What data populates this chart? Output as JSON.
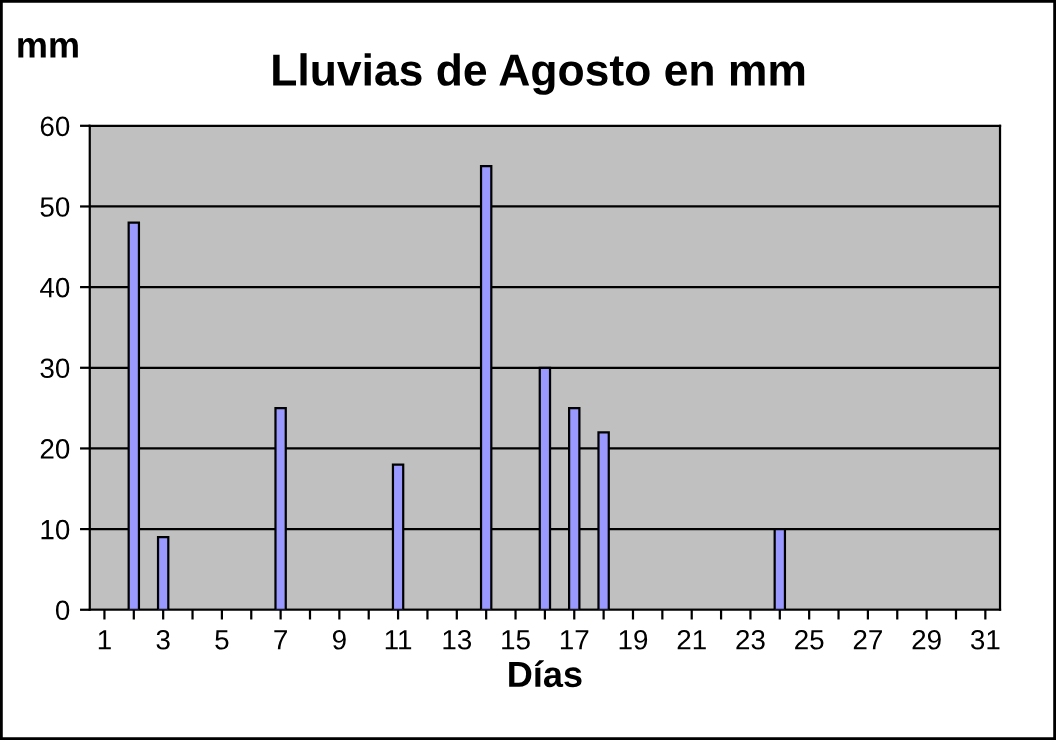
{
  "chart_data": {
    "type": "bar",
    "title": "Lluvias de Agosto en mm",
    "ylabel": "mm",
    "xlabel": "Días",
    "categories": [
      "1",
      null,
      "3",
      null,
      "5",
      null,
      "7",
      null,
      "9",
      null,
      "11",
      null,
      "13",
      null,
      "15",
      null,
      "17",
      null,
      "19",
      null,
      "21",
      null,
      "23",
      null,
      "25",
      null,
      "27",
      null,
      "29",
      null,
      "31"
    ],
    "values": [
      null,
      48,
      9,
      null,
      null,
      null,
      25,
      null,
      null,
      null,
      18,
      null,
      null,
      55,
      null,
      30,
      25,
      22,
      null,
      null,
      null,
      null,
      null,
      10,
      null,
      null,
      null,
      null,
      null,
      null,
      null
    ],
    "color": "#9999ff",
    "ylim": [
      0,
      60
    ],
    "yticks": [
      0,
      10,
      20,
      30,
      40,
      50,
      60
    ],
    "grid": "y",
    "legend": false
  }
}
